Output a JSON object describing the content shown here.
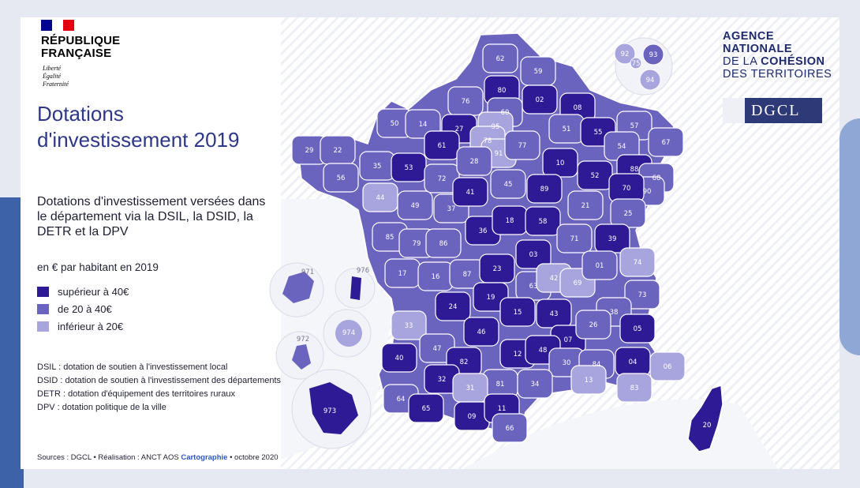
{
  "header": {
    "country": "RÉPUBLIQUE FRANÇAISE",
    "motto": [
      "Liberté",
      "Égalité",
      "Fraternité"
    ]
  },
  "agency": {
    "line1": "AGENCE",
    "line2": "NATIONALE",
    "line3a": "DE LA ",
    "line3b": "COHÉSION",
    "line4": "DES TERRITOIRES",
    "dgcl": "DGCL"
  },
  "title": "Dotations d'investissement 2019",
  "subtitle": "Dotations d'investissement versées dans le département via la DSIL, la DSID, la DETR et la DPV",
  "unit": "en € par habitant en 2019",
  "legend": [
    {
      "label": "supérieur à 40€",
      "color": "#2e1a94"
    },
    {
      "label": "de 20 à 40€",
      "color": "#6b64bf"
    },
    {
      "label": "inférieur à 20€",
      "color": "#a8a4dd"
    }
  ],
  "definitions": [
    "DSIL : dotation de soutien à l'investissement local",
    "DSID : dotation de soutien à l'investissement des départements",
    "DETR : dotation d'équipement des territoires ruraux",
    "DPV : dotation politique de la ville"
  ],
  "sources": {
    "prefix": "Sources : DGCL • Réalisation : ANCT AOS ",
    "highlight": "Cartographie",
    "suffix": " • octobre 2020"
  },
  "colors": {
    "high": "#2e1a94",
    "mid": "#6b64bf",
    "low": "#a8a4dd",
    "title": "#2e3888",
    "france_blue": "#000091",
    "france_red": "#e1000f"
  },
  "departments": [
    {
      "code": "62",
      "cat": "mid"
    },
    {
      "code": "59",
      "cat": "mid"
    },
    {
      "code": "80",
      "cat": "high"
    },
    {
      "code": "02",
      "cat": "high"
    },
    {
      "code": "76",
      "cat": "mid"
    },
    {
      "code": "60",
      "cat": "mid"
    },
    {
      "code": "08",
      "cat": "high"
    },
    {
      "code": "95",
      "cat": "low"
    },
    {
      "code": "50",
      "cat": "mid"
    },
    {
      "code": "14",
      "cat": "mid"
    },
    {
      "code": "27",
      "cat": "high"
    },
    {
      "code": "78",
      "cat": "low"
    },
    {
      "code": "91",
      "cat": "low"
    },
    {
      "code": "77",
      "cat": "mid"
    },
    {
      "code": "51",
      "cat": "mid"
    },
    {
      "code": "55",
      "cat": "high"
    },
    {
      "code": "57",
      "cat": "mid"
    },
    {
      "code": "67",
      "cat": "mid"
    },
    {
      "code": "54",
      "cat": "mid"
    },
    {
      "code": "29",
      "cat": "mid"
    },
    {
      "code": "22",
      "cat": "mid"
    },
    {
      "code": "35",
      "cat": "mid"
    },
    {
      "code": "56",
      "cat": "mid"
    },
    {
      "code": "53",
      "cat": "high"
    },
    {
      "code": "61",
      "cat": "high"
    },
    {
      "code": "72",
      "cat": "mid"
    },
    {
      "code": "28",
      "cat": "mid"
    },
    {
      "code": "45",
      "cat": "mid"
    },
    {
      "code": "10",
      "cat": "high"
    },
    {
      "code": "52",
      "cat": "high"
    },
    {
      "code": "88",
      "cat": "high"
    },
    {
      "code": "68",
      "cat": "mid"
    },
    {
      "code": "90",
      "cat": "mid"
    },
    {
      "code": "44",
      "cat": "low"
    },
    {
      "code": "49",
      "cat": "mid"
    },
    {
      "code": "37",
      "cat": "mid"
    },
    {
      "code": "41",
      "cat": "high"
    },
    {
      "code": "89",
      "cat": "high"
    },
    {
      "code": "21",
      "cat": "mid"
    },
    {
      "code": "70",
      "cat": "high"
    },
    {
      "code": "25",
      "cat": "mid"
    },
    {
      "code": "85",
      "cat": "mid"
    },
    {
      "code": "79",
      "cat": "mid"
    },
    {
      "code": "86",
      "cat": "mid"
    },
    {
      "code": "36",
      "cat": "high"
    },
    {
      "code": "18",
      "cat": "high"
    },
    {
      "code": "58",
      "cat": "high"
    },
    {
      "code": "71",
      "cat": "mid"
    },
    {
      "code": "39",
      "cat": "high"
    },
    {
      "code": "17",
      "cat": "mid"
    },
    {
      "code": "16",
      "cat": "mid"
    },
    {
      "code": "87",
      "cat": "mid"
    },
    {
      "code": "23",
      "cat": "high"
    },
    {
      "code": "03",
      "cat": "high"
    },
    {
      "code": "63",
      "cat": "mid"
    },
    {
      "code": "42",
      "cat": "low"
    },
    {
      "code": "69",
      "cat": "low"
    },
    {
      "code": "01",
      "cat": "mid"
    },
    {
      "code": "74",
      "cat": "low"
    },
    {
      "code": "73",
      "cat": "mid"
    },
    {
      "code": "24",
      "cat": "high"
    },
    {
      "code": "19",
      "cat": "high"
    },
    {
      "code": "15",
      "cat": "high"
    },
    {
      "code": "43",
      "cat": "high"
    },
    {
      "code": "38",
      "cat": "mid"
    },
    {
      "code": "33",
      "cat": "low"
    },
    {
      "code": "46",
      "cat": "high"
    },
    {
      "code": "07",
      "cat": "high"
    },
    {
      "code": "26",
      "cat": "mid"
    },
    {
      "code": "05",
      "cat": "high"
    },
    {
      "code": "47",
      "cat": "mid"
    },
    {
      "code": "12",
      "cat": "high"
    },
    {
      "code": "48",
      "cat": "high"
    },
    {
      "code": "40",
      "cat": "high"
    },
    {
      "code": "82",
      "cat": "high"
    },
    {
      "code": "81",
      "cat": "mid"
    },
    {
      "code": "30",
      "cat": "mid"
    },
    {
      "code": "84",
      "cat": "mid"
    },
    {
      "code": "04",
      "cat": "high"
    },
    {
      "code": "06",
      "cat": "low"
    },
    {
      "code": "32",
      "cat": "high"
    },
    {
      "code": "31",
      "cat": "low"
    },
    {
      "code": "34",
      "cat": "mid"
    },
    {
      "code": "13",
      "cat": "low"
    },
    {
      "code": "83",
      "cat": "low"
    },
    {
      "code": "64",
      "cat": "mid"
    },
    {
      "code": "65",
      "cat": "high"
    },
    {
      "code": "09",
      "cat": "high"
    },
    {
      "code": "11",
      "cat": "high"
    },
    {
      "code": "66",
      "cat": "mid"
    },
    {
      "code": "20",
      "cat": "high"
    },
    {
      "code": "92",
      "cat": "low"
    },
    {
      "code": "93",
      "cat": "mid"
    },
    {
      "code": "75",
      "cat": "low"
    },
    {
      "code": "94",
      "cat": "low"
    },
    {
      "code": "971",
      "cat": "mid"
    },
    {
      "code": "972",
      "cat": "mid"
    },
    {
      "code": "973",
      "cat": "high"
    },
    {
      "code": "974",
      "cat": "low"
    },
    {
      "code": "976",
      "cat": "high"
    }
  ]
}
